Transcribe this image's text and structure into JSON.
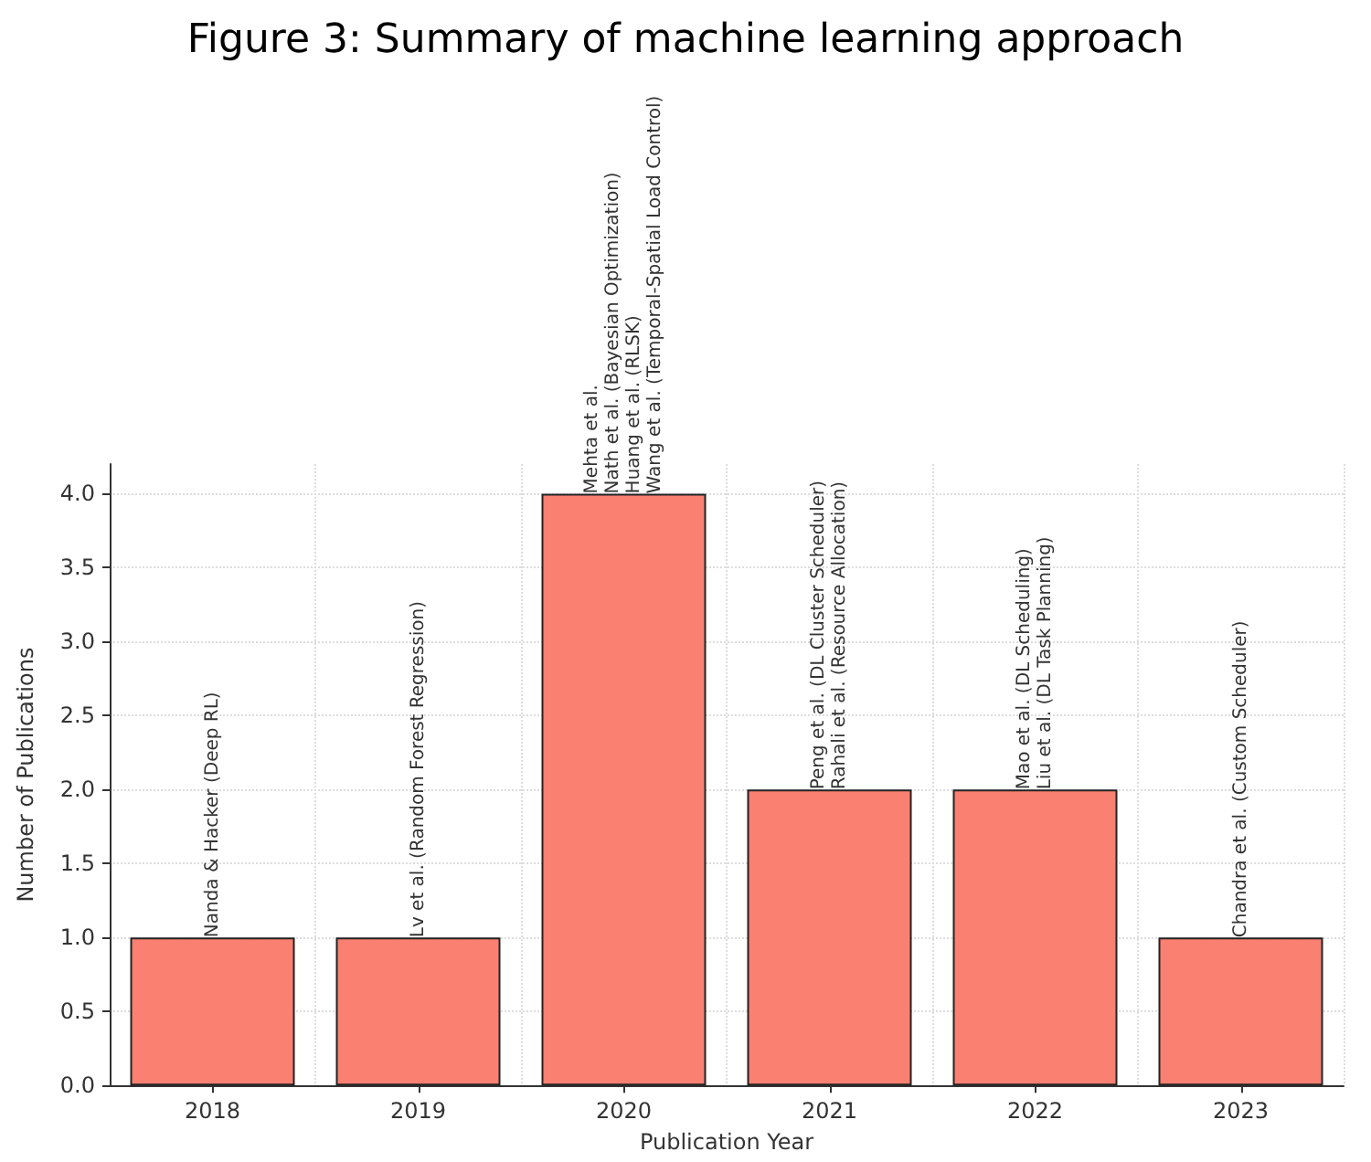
{
  "chart_data": {
    "type": "bar",
    "title": "Figure 3: Summary of machine learning approach",
    "xlabel": "Publication Year",
    "ylabel": "Number of Publications",
    "categories": [
      "2018",
      "2019",
      "2020",
      "2021",
      "2022",
      "2023"
    ],
    "values": [
      1,
      1,
      4,
      2,
      2,
      1
    ],
    "color": "#fa8072",
    "ylim": [
      0,
      4.2
    ],
    "yticks": [
      {
        "value": 0,
        "label": "0.0"
      },
      {
        "value": 0.5,
        "label": "0.5"
      },
      {
        "value": 1,
        "label": "1.0"
      },
      {
        "value": 1.5,
        "label": "1.5"
      },
      {
        "value": 2,
        "label": "2.0"
      },
      {
        "value": 2.5,
        "label": "2.5"
      },
      {
        "value": 3,
        "label": "3.0"
      },
      {
        "value": 3.5,
        "label": "3.5"
      },
      {
        "value": 4,
        "label": "4.0"
      }
    ],
    "grid": true,
    "annotations": [
      {
        "text": "Nanda & Hacker (Deep RL)",
        "x": "2018",
        "y": 1
      },
      {
        "text": "Lv et al. (Random Forest Regression)",
        "x": "2019",
        "y": 1
      },
      {
        "text": "Mehta et al.\nNath et al. (Bayesian Optimization)\nHuang et al. (RLSK)\nWang et al. (Temporal-Spatial Load Control)",
        "x": "2020",
        "y": 4
      },
      {
        "text": "Peng et al. (DL Cluster Scheduler)\nRahali et al. (Resource Allocation)",
        "x": "2021",
        "y": 2
      },
      {
        "text": "Mao et al. (DL Scheduling)\nLiu et al. (DL Task Planning)",
        "x": "2022",
        "y": 2
      },
      {
        "text": "Chandra et al. (Custom Scheduler)",
        "x": "2023",
        "y": 1
      }
    ]
  }
}
